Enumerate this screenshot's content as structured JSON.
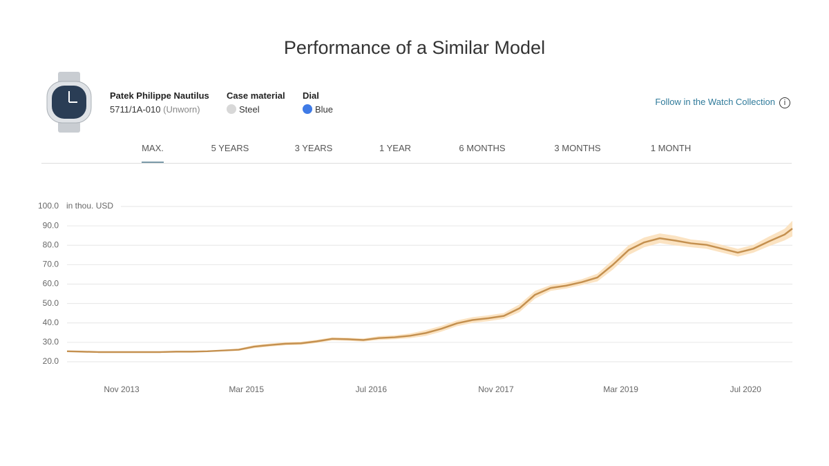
{
  "header": {
    "title": "Performance of a Similar Model"
  },
  "model": {
    "name": "Patek Philippe Nautilus",
    "reference": "5711/1A-010",
    "condition": "(Unworn)"
  },
  "specs": [
    {
      "label": "Case material",
      "value": "Steel",
      "color": "#d8d8d8"
    },
    {
      "label": "Dial",
      "value": "Blue",
      "color": "#3f7be6"
    }
  ],
  "follow_link": "Follow in the Watch Collection",
  "tabs": [
    "MAX.",
    "5 YEARS",
    "3 YEARS",
    "1 YEAR",
    "6 MONTHS",
    "3 MONTHS",
    "1 MONTH"
  ],
  "active_tab": 0,
  "chart_data": {
    "type": "line",
    "unit_label": "in thou. USD",
    "color": "#c4904f",
    "band_color": "#fbe3c2",
    "grid": true,
    "xlim": [
      "2013-04",
      "2021-01"
    ],
    "xticks": [
      {
        "value": "2013-11",
        "label": "Nov 2013"
      },
      {
        "value": "2015-03",
        "label": "Mar 2015"
      },
      {
        "value": "2016-07",
        "label": "Jul 2016"
      },
      {
        "value": "2017-11",
        "label": "Nov 2017"
      },
      {
        "value": "2019-03",
        "label": "Mar 2019"
      },
      {
        "value": "2020-07",
        "label": "Jul 2020"
      }
    ],
    "ylim": [
      20,
      100
    ],
    "yticks": [
      {
        "value": 20,
        "label": "20.0"
      },
      {
        "value": 30,
        "label": "30.0"
      },
      {
        "value": 40,
        "label": "40.0"
      },
      {
        "value": 50,
        "label": "50.0"
      },
      {
        "value": 60,
        "label": "60.0"
      },
      {
        "value": 70,
        "label": "70.0"
      },
      {
        "value": 80,
        "label": "80.0"
      },
      {
        "value": 90,
        "label": "90.0"
      },
      {
        "value": 100,
        "label": "100.0"
      }
    ],
    "x": [
      "2013-04",
      "2013-06",
      "2013-08",
      "2013-10",
      "2013-12",
      "2014-02",
      "2014-04",
      "2014-06",
      "2014-08",
      "2014-10",
      "2014-12",
      "2015-02",
      "2015-04",
      "2015-06",
      "2015-08",
      "2015-10",
      "2015-12",
      "2016-02",
      "2016-04",
      "2016-06",
      "2016-08",
      "2016-10",
      "2016-12",
      "2017-02",
      "2017-04",
      "2017-06",
      "2017-08",
      "2017-10",
      "2017-12",
      "2018-02",
      "2018-04",
      "2018-06",
      "2018-08",
      "2018-10",
      "2018-12",
      "2019-02",
      "2019-04",
      "2019-06",
      "2019-08",
      "2019-10",
      "2019-12",
      "2020-02",
      "2020-04",
      "2020-06",
      "2020-08",
      "2020-10",
      "2020-12",
      "2021-01"
    ],
    "values": [
      25.4,
      25.2,
      25.0,
      25.0,
      25.0,
      25.0,
      25.0,
      25.2,
      25.2,
      25.4,
      25.8,
      26.2,
      27.8,
      28.6,
      29.3,
      29.5,
      30.5,
      31.8,
      31.6,
      31.2,
      32.2,
      32.6,
      33.4,
      34.8,
      37.0,
      39.8,
      41.5,
      42.4,
      43.6,
      47.5,
      54.5,
      58.0,
      59.2,
      61.0,
      63.4,
      70.0,
      77.5,
      81.5,
      83.6,
      82.4,
      81.0,
      80.2,
      78.2,
      76.2,
      78.2,
      82.0,
      85.5,
      88.6
    ],
    "errors": [
      0.3,
      0.3,
      0.3,
      0.3,
      0.3,
      0.3,
      0.3,
      0.3,
      0.3,
      0.3,
      0.4,
      0.6,
      0.8,
      0.8,
      0.8,
      0.8,
      0.8,
      0.8,
      0.8,
      0.8,
      1.0,
      1.0,
      1.2,
      1.5,
      1.5,
      1.5,
      1.5,
      1.5,
      1.5,
      2.0,
      2.0,
      1.5,
      1.5,
      1.5,
      2.0,
      2.5,
      2.5,
      2.5,
      2.5,
      2.5,
      2.0,
      2.0,
      2.0,
      2.0,
      2.0,
      2.5,
      3.0,
      4.0
    ]
  }
}
